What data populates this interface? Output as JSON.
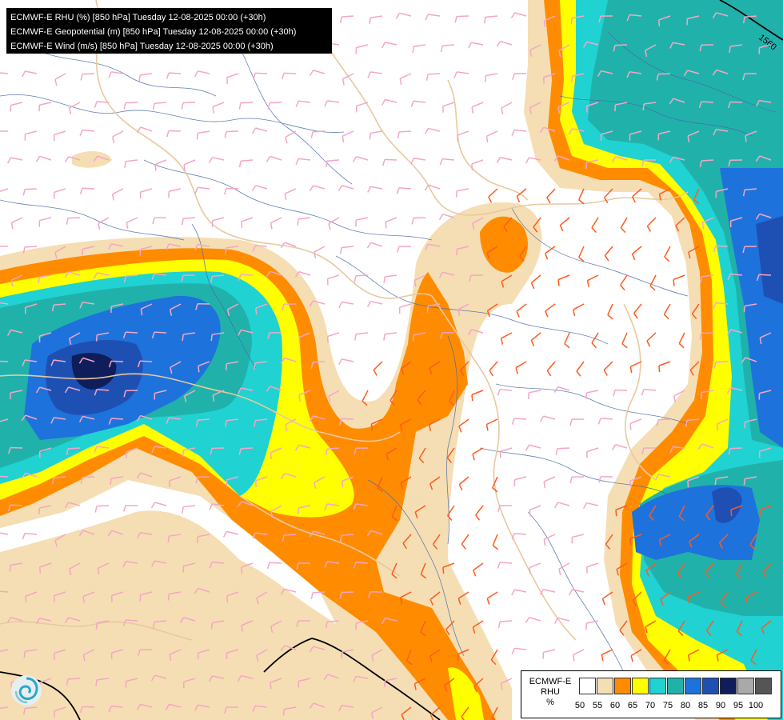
{
  "header": {
    "lines": [
      "ECMWF-E RHU (%) [850 hPa] Tuesday 12-08-2025 00:00 (+30h)",
      "ECMWF-E Geopotential (m) [850 hPa] Tuesday 12-08-2025 00:00 (+30h)",
      "ECMWF-E Wind (m/s) [850 hPa] Tuesday 12-08-2025 00:00 (+30h)"
    ]
  },
  "contour_label": "1560",
  "legend": {
    "title_line1": "ECMWF-E",
    "title_line2": "RHU",
    "unit": "%",
    "classes": [
      {
        "min": 50,
        "color": "#ffffff"
      },
      {
        "min": 55,
        "color": "#f5deb3"
      },
      {
        "min": 60,
        "color": "#ff8c00"
      },
      {
        "min": 65,
        "color": "#ffff00"
      },
      {
        "min": 70,
        "color": "#20d2d2"
      },
      {
        "min": 75,
        "color": "#20b2aa"
      },
      {
        "min": 80,
        "color": "#1e72dc"
      },
      {
        "min": 85,
        "color": "#1e50b4"
      },
      {
        "min": 90,
        "color": "#0f1e5a"
      },
      {
        "min": 95,
        "color": "#a9a9a9"
      },
      {
        "min": 100,
        "color": "#555555"
      }
    ],
    "ticks": [
      "50",
      "55",
      "60",
      "65",
      "70",
      "75",
      "80",
      "85",
      "90",
      "95",
      "100"
    ]
  },
  "colors": {
    "wheat": "#f5deb3",
    "orange": "#ff8c00",
    "yellow": "#ffff00",
    "cyan": "#20d2d2",
    "teal": "#20b2aa",
    "blue": "#1e72dc",
    "darkblue": "#1e50b4",
    "navy": "#0f1e5a",
    "barb_pink": "#f4a6c6",
    "barb_orange": "#ff5a1e",
    "border": "#e8c9a0",
    "river": "#4a6aa8"
  }
}
